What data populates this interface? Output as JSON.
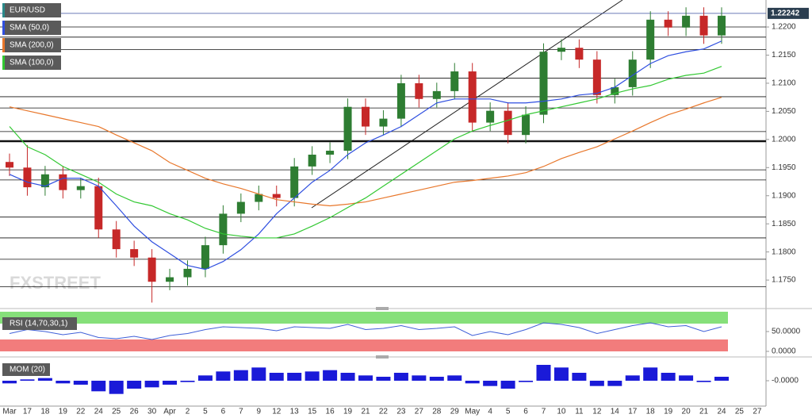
{
  "chart_data": [
    {
      "type": "candlestick",
      "name": "EUR/USD",
      "categories": [
        "Mar",
        "17",
        "18",
        "19",
        "22",
        "24",
        "25",
        "26",
        "30",
        "Apr",
        "2",
        "5",
        "6",
        "7",
        "9",
        "12",
        "13",
        "15",
        "16",
        "19",
        "21",
        "22",
        "23",
        "27",
        "28",
        "29",
        "May",
        "4",
        "5",
        "6",
        "7",
        "10",
        "11",
        "12",
        "14",
        "17",
        "18",
        "19",
        "20",
        "21",
        "24",
        "25",
        "27"
      ],
      "open": [
        1.196,
        1.195,
        1.1915,
        1.1938,
        1.191,
        1.1917,
        1.184,
        1.1805,
        1.179,
        1.1747,
        1.1755,
        1.177,
        1.1812,
        1.1868,
        1.1889,
        1.1903,
        1.1896,
        1.1952,
        1.1973,
        1.198,
        1.2058,
        1.2023,
        1.2037,
        1.21,
        1.2072,
        1.2086,
        1.2121,
        1.203,
        1.2051,
        1.2008,
        1.2044,
        1.2156,
        1.2163,
        1.2142,
        1.2079,
        1.2093,
        1.2142,
        1.2213,
        1.2199,
        1.222,
        1.2185,
        null,
        null
      ],
      "high": [
        1.1975,
        1.199,
        1.1953,
        1.1953,
        1.1932,
        1.1932,
        1.1855,
        1.182,
        1.1805,
        1.177,
        1.1785,
        1.1827,
        1.1883,
        1.1904,
        1.1918,
        1.1918,
        1.1967,
        1.1988,
        1.1995,
        1.2073,
        1.2073,
        1.2052,
        1.2115,
        1.2115,
        1.2101,
        1.2136,
        1.2136,
        1.2066,
        1.2066,
        1.2059,
        1.2171,
        1.2178,
        1.2178,
        1.2157,
        1.2108,
        1.2157,
        1.2228,
        1.2228,
        1.2235,
        1.2235,
        1.2235,
        null,
        null
      ],
      "low": [
        1.1935,
        1.19,
        1.19,
        1.1895,
        1.1895,
        1.1825,
        1.179,
        1.1775,
        1.171,
        1.1732,
        1.174,
        1.1755,
        1.1797,
        1.1853,
        1.1874,
        1.1881,
        1.1881,
        1.1937,
        1.1958,
        1.1965,
        1.2008,
        1.2008,
        1.2022,
        1.2057,
        1.2057,
        1.2071,
        1.2015,
        1.2015,
        1.1993,
        1.1993,
        1.2029,
        1.2141,
        1.2127,
        1.2064,
        1.2064,
        1.2078,
        1.2127,
        1.2184,
        1.2184,
        1.217,
        1.217,
        null,
        null
      ],
      "close": [
        1.195,
        1.1915,
        1.1938,
        1.191,
        1.1917,
        1.184,
        1.1805,
        1.179,
        1.1747,
        1.1755,
        1.177,
        1.1812,
        1.1868,
        1.1889,
        1.1903,
        1.1896,
        1.1952,
        1.1973,
        1.198,
        1.2058,
        1.2023,
        1.2037,
        1.21,
        1.2072,
        1.2086,
        1.2121,
        1.203,
        1.2051,
        1.2008,
        1.2044,
        1.2156,
        1.2163,
        1.2142,
        1.2079,
        1.2093,
        1.2142,
        1.2213,
        1.2199,
        1.222,
        1.2185,
        1.222,
        null,
        null
      ],
      "up_color": "#2e7d32",
      "down_color": "#c62828",
      "series": [
        {
          "name": "SMA (50,0)",
          "color": "#2f4fe0",
          "values": [
            1.1938,
            1.1924,
            1.1917,
            1.1931,
            1.1931,
            1.1917,
            1.1882,
            1.1846,
            1.1818,
            1.1797,
            1.1776,
            1.1769,
            1.1783,
            1.1804,
            1.1832,
            1.1868,
            1.1896,
            1.1924,
            1.1945,
            1.1973,
            1.1994,
            1.2008,
            1.2023,
            1.2044,
            1.2065,
            1.2072,
            1.2072,
            1.2072,
            1.2065,
            1.2065,
            1.2068,
            1.2072,
            1.2079,
            1.2082,
            1.2093,
            1.2114,
            1.2135,
            1.2149,
            1.2156,
            1.2161,
            1.2175,
            null,
            null
          ]
        },
        {
          "name": "SMA (200,0)",
          "color": "#e8772b",
          "values": [
            1.2058,
            1.2051,
            1.2044,
            1.2037,
            1.203,
            1.2023,
            1.2008,
            1.1994,
            1.198,
            1.1959,
            1.1945,
            1.1931,
            1.1921,
            1.1913,
            1.1903,
            1.1893,
            1.1889,
            1.1885,
            1.1882,
            1.1885,
            1.1889,
            1.1896,
            1.1903,
            1.191,
            1.1917,
            1.1924,
            1.1927,
            1.1931,
            1.1935,
            1.1941,
            1.1952,
            1.1966,
            1.1977,
            1.1987,
            1.2001,
            1.2015,
            1.203,
            1.2044,
            1.2054,
            1.2065,
            1.2075,
            null,
            null
          ]
        },
        {
          "name": "SMA (100,0)",
          "color": "#32c832",
          "values": [
            1.2023,
            1.1987,
            1.1973,
            1.1952,
            1.1938,
            1.1924,
            1.1903,
            1.1889,
            1.1882,
            1.1868,
            1.1857,
            1.1842,
            1.1832,
            1.1828,
            1.1825,
            1.1825,
            1.1832,
            1.1846,
            1.1861,
            1.1879,
            1.1896,
            1.1917,
            1.1938,
            1.1959,
            1.198,
            1.2001,
            1.2015,
            1.2025,
            1.2034,
            1.2044,
            1.2051,
            1.2058,
            1.2065,
            1.2072,
            1.2082,
            1.209,
            1.2096,
            1.2107,
            1.2114,
            1.2118,
            1.213,
            null,
            null
          ]
        }
      ],
      "levels": [
        1.22,
        1.2182,
        1.216,
        1.2109,
        1.2076,
        1.2056,
        1.2014,
        1.1997,
        1.1946,
        1.1928,
        1.1862,
        1.1825,
        1.1787,
        1.1738
      ],
      "thick_level": 1.1997,
      "last_price": 1.22242,
      "ylim": [
        1.1705,
        1.2248
      ],
      "yticks": [
        {
          "value": 1.22,
          "label": "1.2200"
        },
        {
          "value": 1.215,
          "label": "1.2150"
        },
        {
          "value": 1.21,
          "label": "1.2100"
        },
        {
          "value": 1.205,
          "label": "1.2050"
        },
        {
          "value": 1.2,
          "label": "1.2000"
        },
        {
          "value": 1.195,
          "label": "1.1950"
        },
        {
          "value": 1.19,
          "label": "1.1900"
        },
        {
          "value": 1.185,
          "label": "1.1850"
        },
        {
          "value": 1.18,
          "label": "1.1800"
        },
        {
          "value": 1.175,
          "label": "1.1750"
        }
      ],
      "logo": "FXSTREET"
    },
    {
      "type": "line",
      "title": "RSI (14,70,30,1)",
      "color": "#3f5fd8",
      "values": [
        45,
        55,
        50,
        42,
        48,
        35,
        32,
        38,
        30,
        40,
        45,
        55,
        62,
        60,
        58,
        52,
        62,
        60,
        58,
        68,
        55,
        58,
        65,
        55,
        58,
        62,
        40,
        50,
        42,
        55,
        72,
        68,
        60,
        45,
        55,
        65,
        72,
        62,
        65,
        50,
        62,
        null,
        null
      ],
      "overbought": 70,
      "oversold": 30,
      "overbought_color": "#86e07a",
      "oversold_color": "#f27c7c",
      "ylim": [
        0,
        100
      ],
      "yticks": [
        {
          "value": 50,
          "label": "50.0000"
        },
        {
          "value": 0,
          "label": "0.0000"
        }
      ]
    },
    {
      "type": "bar",
      "title": "MOM (20)",
      "color": "#1a1ad8",
      "values": [
        -0.002,
        0.001,
        0.002,
        -0.002,
        -0.003,
        -0.008,
        -0.01,
        -0.006,
        -0.005,
        -0.003,
        -0.001,
        0.004,
        0.007,
        0.008,
        0.01,
        0.006,
        0.006,
        0.007,
        0.008,
        0.006,
        0.004,
        0.003,
        0.006,
        0.004,
        0.003,
        0.004,
        -0.002,
        -0.004,
        -0.006,
        -0.001,
        0.012,
        0.01,
        0.006,
        -0.004,
        -0.004,
        0.004,
        0.01,
        0.006,
        0.004,
        -0.001,
        0.003,
        null,
        null
      ],
      "ylim": [
        -0.015,
        0.015
      ],
      "yticks": [
        {
          "value": 0,
          "label": "-0.0000"
        }
      ]
    }
  ]
}
